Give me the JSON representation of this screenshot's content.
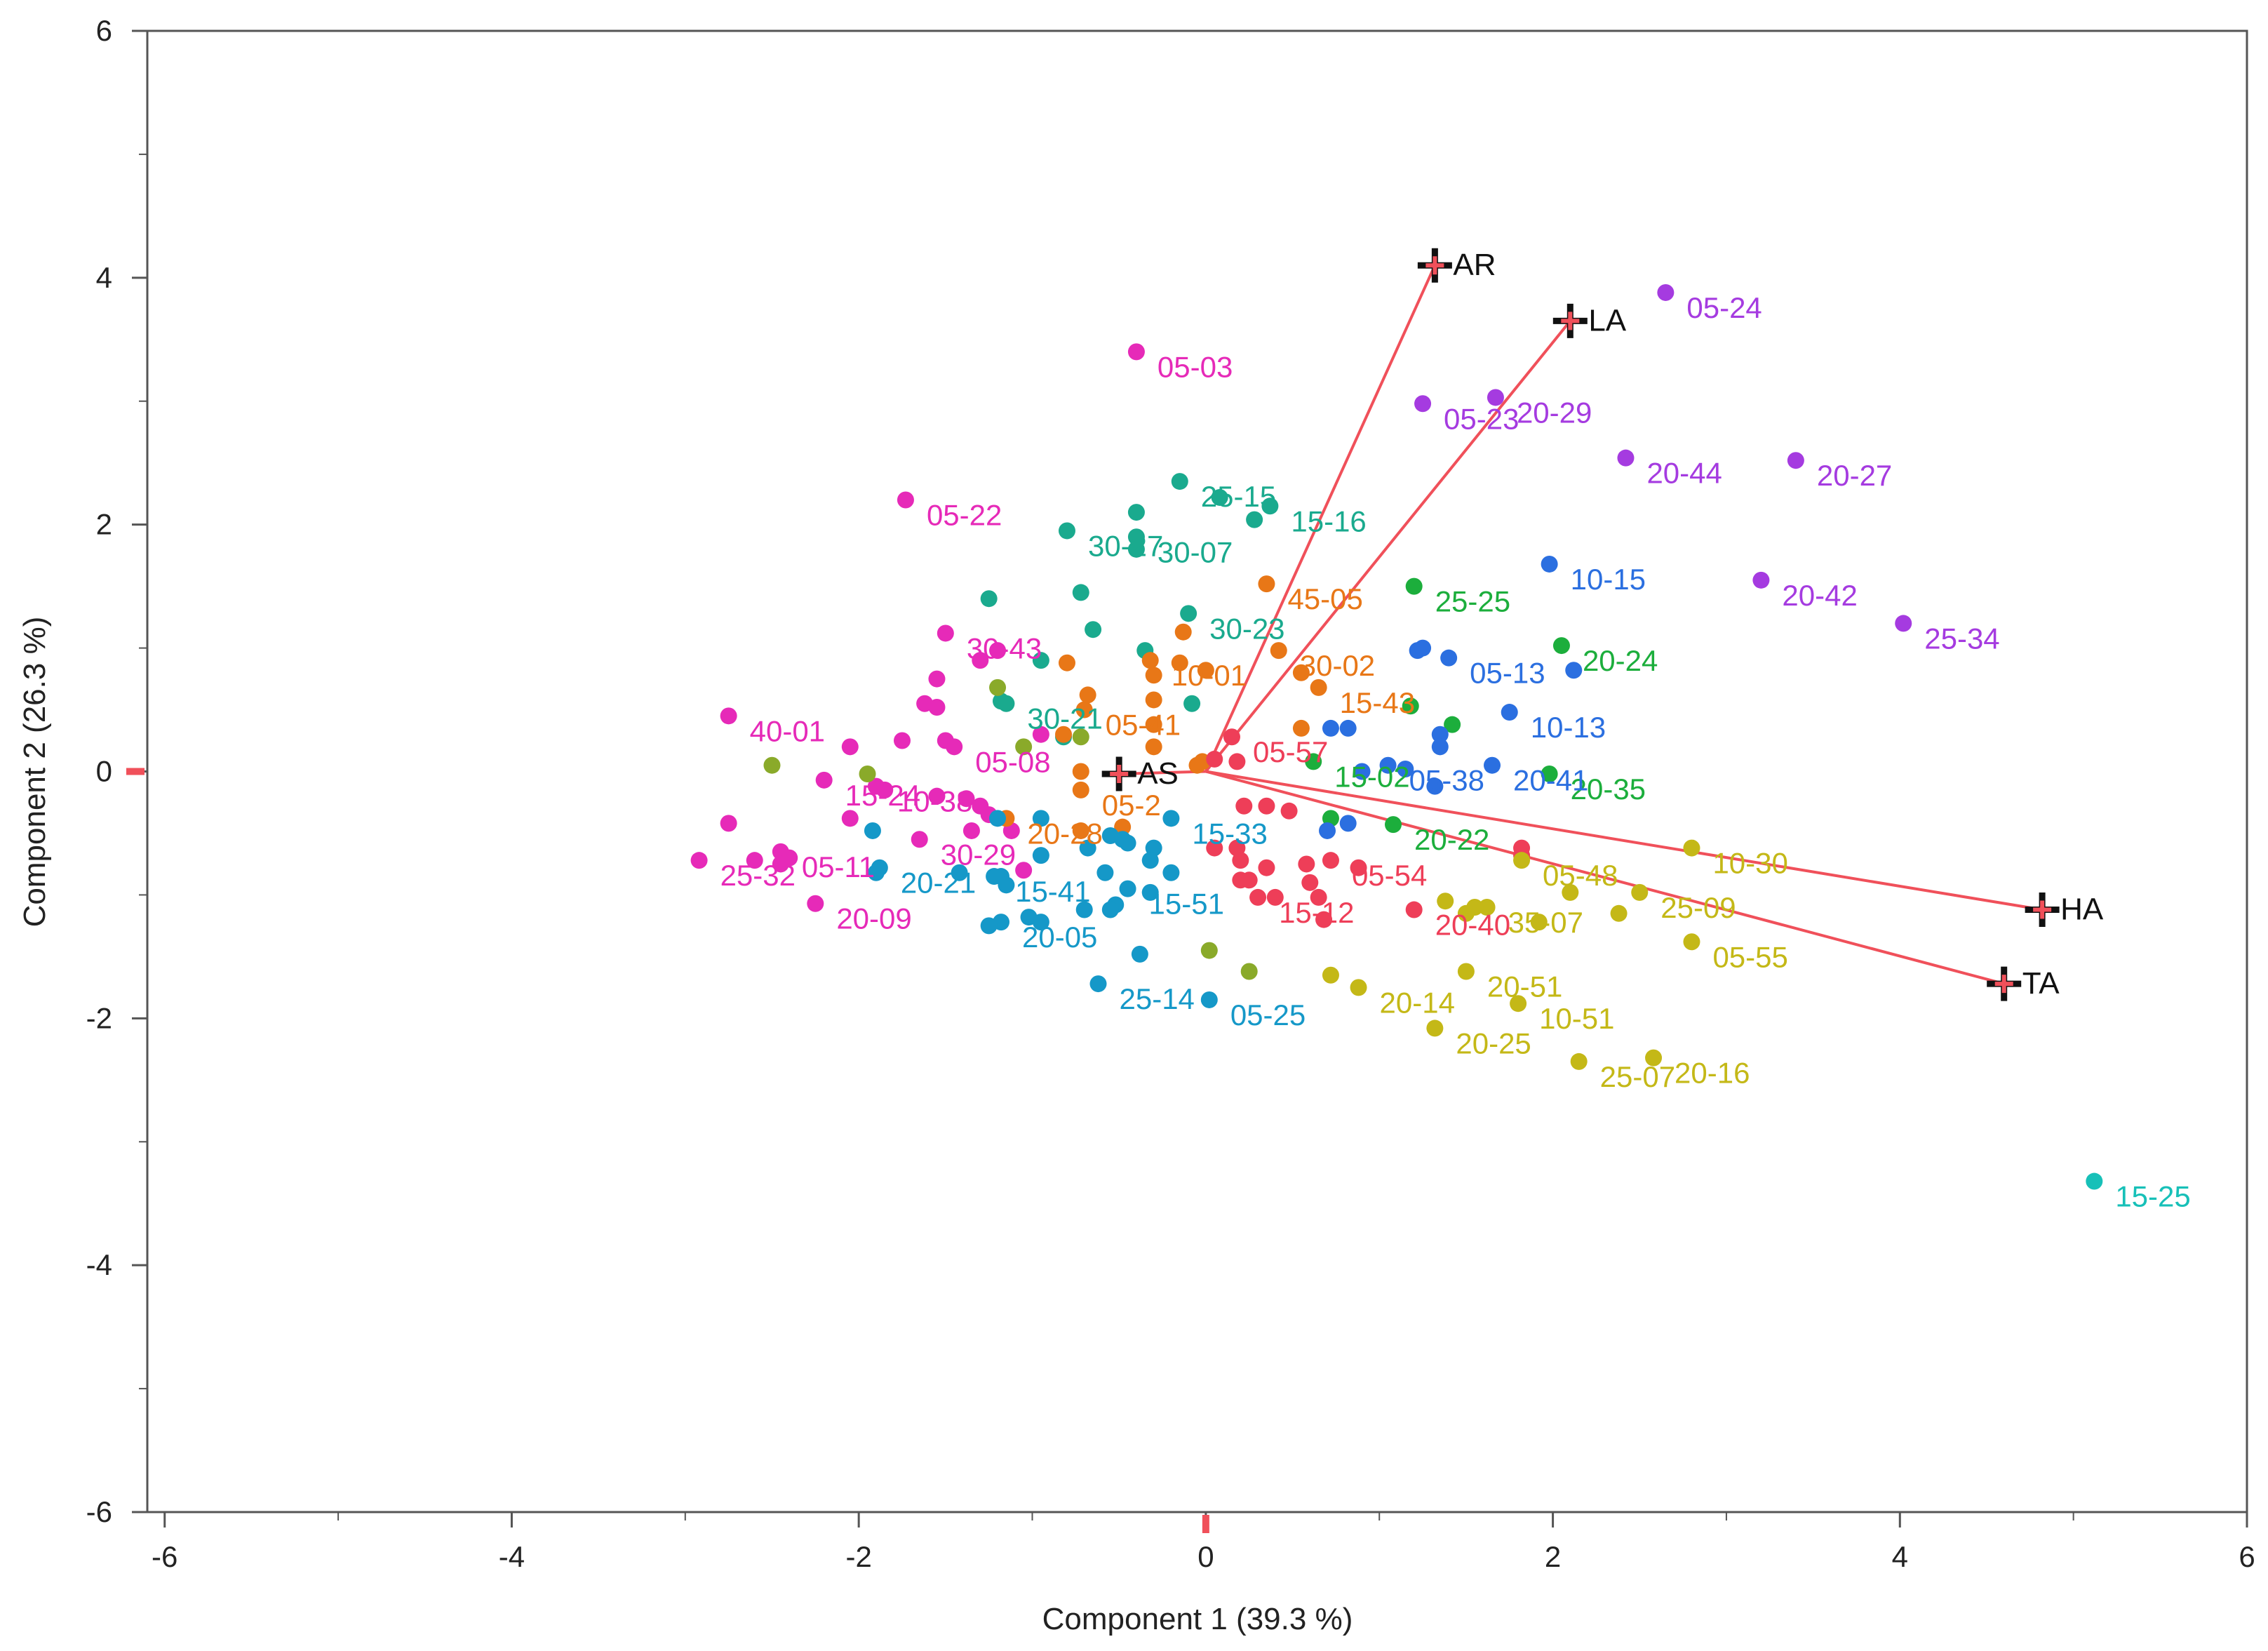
{
  "chart_data": {
    "type": "scatter",
    "subtype": "biplot",
    "title": "",
    "xlabel": "Component 1 (39.3 %)",
    "ylabel": "Component 2  (26.3 %)",
    "xlim": [
      -6.1,
      6
    ],
    "ylim": [
      -6,
      6
    ],
    "xticks": [
      "-6",
      "-4",
      "-2",
      "0",
      "2",
      "4",
      "6"
    ],
    "yticks": [
      "6",
      "4",
      "2",
      "0",
      "-2",
      "-4",
      "-6"
    ],
    "vector_origin": [
      0,
      0
    ],
    "vectors": [
      {
        "name": "AR",
        "x": 1.32,
        "y": 4.1
      },
      {
        "name": "LA",
        "x": 2.1,
        "y": 3.65
      },
      {
        "name": "HA",
        "x": 4.82,
        "y": -1.12
      },
      {
        "name": "TA",
        "x": 4.6,
        "y": -1.72
      },
      {
        "name": "AS",
        "x": -0.5,
        "y": -0.02
      }
    ],
    "vector_color": "#f0505a",
    "series": [
      {
        "name": "magenta",
        "color": "#e62ab8",
        "points": [
          {
            "x": -0.4,
            "y": 3.4,
            "label": "05-03"
          },
          {
            "x": -1.73,
            "y": 2.2,
            "label": "05-22"
          },
          {
            "x": -1.5,
            "y": 1.12,
            "label": "30-43"
          },
          {
            "x": -2.75,
            "y": 0.45,
            "label": "40-01"
          },
          {
            "x": -2.2,
            "y": -0.07,
            "label": "15-24"
          },
          {
            "x": -1.9,
            "y": -0.12,
            "label": "10-38"
          },
          {
            "x": -1.45,
            "y": 0.2,
            "label": "05-08"
          },
          {
            "x": -2.45,
            "y": -0.65,
            "label": "05-11"
          },
          {
            "x": -1.65,
            "y": -0.55,
            "label": "30-29"
          },
          {
            "x": -2.92,
            "y": -0.72,
            "label": "25-32"
          },
          {
            "x": -2.25,
            "y": -1.07,
            "label": "20-09"
          },
          {
            "x": -1.2,
            "y": 0.98
          },
          {
            "x": -1.3,
            "y": 0.9
          },
          {
            "x": -1.55,
            "y": 0.75
          },
          {
            "x": -1.62,
            "y": 0.55
          },
          {
            "x": -1.55,
            "y": 0.52
          },
          {
            "x": -1.75,
            "y": 0.25
          },
          {
            "x": -1.5,
            "y": 0.25
          },
          {
            "x": -0.95,
            "y": 0.3
          },
          {
            "x": -2.05,
            "y": 0.2
          },
          {
            "x": -2.75,
            "y": -0.42
          },
          {
            "x": -2.4,
            "y": -0.7
          },
          {
            "x": -2.6,
            "y": -0.72
          },
          {
            "x": -2.45,
            "y": -0.75
          },
          {
            "x": -2.05,
            "y": -0.38
          },
          {
            "x": -1.85,
            "y": -0.15
          },
          {
            "x": -1.55,
            "y": -0.2
          },
          {
            "x": -1.38,
            "y": -0.22
          },
          {
            "x": -1.3,
            "y": -0.28
          },
          {
            "x": -1.25,
            "y": -0.35
          },
          {
            "x": -1.12,
            "y": -0.48
          },
          {
            "x": -1.35,
            "y": -0.48
          },
          {
            "x": -1.05,
            "y": -0.8
          }
        ]
      },
      {
        "name": "purple",
        "color": "#a53be0",
        "points": [
          {
            "x": 2.65,
            "y": 3.88,
            "label": "05-24"
          },
          {
            "x": 1.25,
            "y": 2.98,
            "label": "05-23"
          },
          {
            "x": 1.67,
            "y": 3.03,
            "label": "20-29"
          },
          {
            "x": 2.42,
            "y": 2.54,
            "label": "20-44"
          },
          {
            "x": 3.4,
            "y": 2.52,
            "label": "20-27"
          },
          {
            "x": 3.2,
            "y": 1.55,
            "label": "20-42"
          },
          {
            "x": 4.02,
            "y": 1.2,
            "label": "25-34"
          }
        ]
      },
      {
        "name": "teal",
        "color": "#1aaa8e",
        "points": [
          {
            "x": -0.15,
            "y": 2.35,
            "label": "25-15"
          },
          {
            "x": 0.37,
            "y": 2.15,
            "label": "15-16"
          },
          {
            "x": -0.8,
            "y": 1.95,
            "label": "30-27"
          },
          {
            "x": -0.4,
            "y": 1.9,
            "label": "30-07"
          },
          {
            "x": -0.1,
            "y": 1.28,
            "label": "30-23"
          },
          {
            "x": -1.15,
            "y": 0.55,
            "label": "30-21"
          },
          {
            "x": 0.08,
            "y": 2.22
          },
          {
            "x": -0.4,
            "y": 2.1
          },
          {
            "x": 0.28,
            "y": 2.04
          },
          {
            "x": -0.4,
            "y": 1.8
          },
          {
            "x": -0.72,
            "y": 1.45
          },
          {
            "x": -1.25,
            "y": 1.4
          },
          {
            "x": -0.65,
            "y": 1.15
          },
          {
            "x": -0.95,
            "y": 0.9
          },
          {
            "x": -0.35,
            "y": 0.98
          },
          {
            "x": -0.08,
            "y": 0.55
          },
          {
            "x": -1.18,
            "y": 0.57
          },
          {
            "x": -0.82,
            "y": 0.28
          }
        ]
      },
      {
        "name": "orange",
        "color": "#e87717",
        "points": [
          {
            "x": 0.35,
            "y": 1.52,
            "label": "45-05"
          },
          {
            "x": 0.42,
            "y": 0.98,
            "label": "30-02"
          },
          {
            "x": -0.32,
            "y": 0.9,
            "label": "10-01"
          },
          {
            "x": -0.7,
            "y": 0.5,
            "label": "05-41"
          },
          {
            "x": 0.65,
            "y": 0.68,
            "label": "15-43"
          },
          {
            "x": -1.15,
            "y": -0.38,
            "label": "20-28"
          },
          {
            "x": -0.72,
            "y": -0.15,
            "label": "05-2"
          },
          {
            "x": -0.13,
            "y": 1.13
          },
          {
            "x": -0.15,
            "y": 0.88
          },
          {
            "x": 0.0,
            "y": 0.82
          },
          {
            "x": -0.8,
            "y": 0.88
          },
          {
            "x": -0.3,
            "y": 0.78
          },
          {
            "x": -0.68,
            "y": 0.62
          },
          {
            "x": -0.3,
            "y": 0.58
          },
          {
            "x": -0.3,
            "y": 0.38
          },
          {
            "x": -0.82,
            "y": 0.3
          },
          {
            "x": -0.3,
            "y": 0.2
          },
          {
            "x": 0.55,
            "y": 0.8
          },
          {
            "x": 0.55,
            "y": 0.35
          },
          {
            "x": -0.72,
            "y": 0.0
          },
          {
            "x": -0.05,
            "y": 0.05
          },
          {
            "x": -0.02,
            "y": 0.08
          },
          {
            "x": -0.72,
            "y": -0.48
          },
          {
            "x": -0.48,
            "y": -0.45
          }
        ]
      },
      {
        "name": "green",
        "color": "#1cae3c",
        "points": [
          {
            "x": 1.2,
            "y": 1.5,
            "label": "25-25"
          },
          {
            "x": 2.05,
            "y": 1.02,
            "label": "20-24"
          },
          {
            "x": 0.62,
            "y": 0.08,
            "label": "15-02"
          },
          {
            "x": 1.98,
            "y": -0.02,
            "label": "20-35"
          },
          {
            "x": 1.08,
            "y": -0.43,
            "label": "20-22"
          },
          {
            "x": 1.18,
            "y": 0.53
          },
          {
            "x": 1.42,
            "y": 0.38
          },
          {
            "x": 0.72,
            "y": -0.38
          }
        ]
      },
      {
        "name": "blue",
        "color": "#2b6fe0",
        "points": [
          {
            "x": 1.98,
            "y": 1.68,
            "label": "10-15"
          },
          {
            "x": 1.4,
            "y": 0.92,
            "label": "05-13"
          },
          {
            "x": 1.75,
            "y": 0.48,
            "label": "10-13"
          },
          {
            "x": 1.05,
            "y": 0.05,
            "label": "05-38"
          },
          {
            "x": 1.65,
            "y": 0.05,
            "label": "20-41"
          },
          {
            "x": 1.22,
            "y": 0.98
          },
          {
            "x": 1.25,
            "y": 1.0
          },
          {
            "x": 2.12,
            "y": 0.82
          },
          {
            "x": 0.72,
            "y": 0.35
          },
          {
            "x": 0.82,
            "y": 0.35
          },
          {
            "x": 1.35,
            "y": 0.3
          },
          {
            "x": 1.35,
            "y": 0.2
          },
          {
            "x": 0.9,
            "y": 0.0
          },
          {
            "x": 1.15,
            "y": 0.02
          },
          {
            "x": 1.32,
            "y": -0.12
          },
          {
            "x": 0.82,
            "y": -0.42
          },
          {
            "x": 0.7,
            "y": -0.48
          }
        ]
      },
      {
        "name": "red",
        "color": "#ee3e58",
        "points": [
          {
            "x": 0.15,
            "y": 0.28,
            "label": "05-57"
          },
          {
            "x": 0.72,
            "y": -0.72,
            "label": "05-54"
          },
          {
            "x": 1.2,
            "y": -1.12,
            "label": "20-40"
          },
          {
            "x": 0.3,
            "y": -1.02,
            "label": "15-12"
          },
          {
            "x": 0.18,
            "y": 0.08
          },
          {
            "x": 0.05,
            "y": 0.1
          },
          {
            "x": 0.22,
            "y": -0.28
          },
          {
            "x": 0.35,
            "y": -0.28
          },
          {
            "x": 0.48,
            "y": -0.32
          },
          {
            "x": 0.05,
            "y": -0.62
          },
          {
            "x": 0.18,
            "y": -0.62
          },
          {
            "x": 0.2,
            "y": -0.72
          },
          {
            "x": 0.35,
            "y": -0.78
          },
          {
            "x": 0.58,
            "y": -0.75
          },
          {
            "x": 0.88,
            "y": -0.78
          },
          {
            "x": 0.2,
            "y": -0.88
          },
          {
            "x": 0.25,
            "y": -0.88
          },
          {
            "x": 0.6,
            "y": -0.9
          },
          {
            "x": 0.65,
            "y": -1.02
          },
          {
            "x": 0.4,
            "y": -1.02
          },
          {
            "x": 0.68,
            "y": -1.2
          },
          {
            "x": 1.82,
            "y": -0.62
          },
          {
            "x": 1.82,
            "y": -0.68
          }
        ]
      },
      {
        "name": "cyan-blue",
        "color": "#1598c8",
        "points": [
          {
            "x": -0.2,
            "y": -0.38,
            "label": "15-33"
          },
          {
            "x": -1.22,
            "y": -0.85,
            "label": "15-41"
          },
          {
            "x": -0.45,
            "y": -0.95,
            "label": "15-51"
          },
          {
            "x": -1.88,
            "y": -0.78,
            "label": "20-21"
          },
          {
            "x": -1.18,
            "y": -1.22,
            "label": "20-05"
          },
          {
            "x": -0.62,
            "y": -1.72,
            "label": "25-14"
          },
          {
            "x": 0.02,
            "y": -1.85,
            "label": "05-25"
          },
          {
            "x": -1.2,
            "y": -0.38
          },
          {
            "x": -0.95,
            "y": -0.38
          },
          {
            "x": -0.55,
            "y": -0.52
          },
          {
            "x": -0.48,
            "y": -0.55
          },
          {
            "x": -0.45,
            "y": -0.58
          },
          {
            "x": -0.68,
            "y": -0.62
          },
          {
            "x": -0.3,
            "y": -0.62
          },
          {
            "x": -0.95,
            "y": -0.68
          },
          {
            "x": -0.32,
            "y": -0.72
          },
          {
            "x": -1.42,
            "y": -0.82
          },
          {
            "x": -1.9,
            "y": -0.82
          },
          {
            "x": -1.18,
            "y": -0.85
          },
          {
            "x": -0.58,
            "y": -0.82
          },
          {
            "x": -0.2,
            "y": -0.82
          },
          {
            "x": -1.15,
            "y": -0.92
          },
          {
            "x": -0.32,
            "y": -0.98
          },
          {
            "x": -0.52,
            "y": -1.08
          },
          {
            "x": -1.02,
            "y": -1.18
          },
          {
            "x": -0.7,
            "y": -1.12
          },
          {
            "x": -0.55,
            "y": -1.12
          },
          {
            "x": -0.95,
            "y": -1.22
          },
          {
            "x": -1.25,
            "y": -1.25
          },
          {
            "x": -0.38,
            "y": -1.48
          },
          {
            "x": -1.92,
            "y": -0.48
          }
        ]
      },
      {
        "name": "olive-green",
        "color": "#8aaa2a",
        "points": [
          {
            "x": -2.5,
            "y": 0.05
          },
          {
            "x": -1.95,
            "y": -0.02
          },
          {
            "x": -1.05,
            "y": 0.2
          },
          {
            "x": -1.2,
            "y": 0.68
          },
          {
            "x": -0.72,
            "y": 0.28
          },
          {
            "x": 0.02,
            "y": -1.45
          },
          {
            "x": 0.25,
            "y": -1.62
          }
        ]
      },
      {
        "name": "yellow",
        "color": "#c4b817",
        "points": [
          {
            "x": 1.82,
            "y": -0.72,
            "label": "05-48"
          },
          {
            "x": 2.8,
            "y": -0.62,
            "label": "10-30"
          },
          {
            "x": 1.62,
            "y": -1.1,
            "label": "35-07"
          },
          {
            "x": 2.5,
            "y": -0.98,
            "label": "25-09"
          },
          {
            "x": 2.8,
            "y": -1.38,
            "label": "05-55"
          },
          {
            "x": 1.5,
            "y": -1.62,
            "label": "20-51"
          },
          {
            "x": 0.88,
            "y": -1.75,
            "label": "20-14"
          },
          {
            "x": 1.32,
            "y": -2.08,
            "label": "20-25"
          },
          {
            "x": 1.8,
            "y": -1.88,
            "label": "10-51"
          },
          {
            "x": 2.15,
            "y": -2.35,
            "label": "25-07"
          },
          {
            "x": 2.58,
            "y": -2.32,
            "label": "20-16"
          },
          {
            "x": 1.5,
            "y": -1.15
          },
          {
            "x": 1.55,
            "y": -1.1
          },
          {
            "x": 1.38,
            "y": -1.05
          },
          {
            "x": 2.1,
            "y": -0.98
          },
          {
            "x": 1.92,
            "y": -1.22
          },
          {
            "x": 2.38,
            "y": -1.15
          },
          {
            "x": 0.72,
            "y": -1.65
          }
        ]
      },
      {
        "name": "turquoise",
        "color": "#17c0b8",
        "points": [
          {
            "x": 5.12,
            "y": -3.32,
            "label": "15-25"
          }
        ]
      }
    ]
  }
}
